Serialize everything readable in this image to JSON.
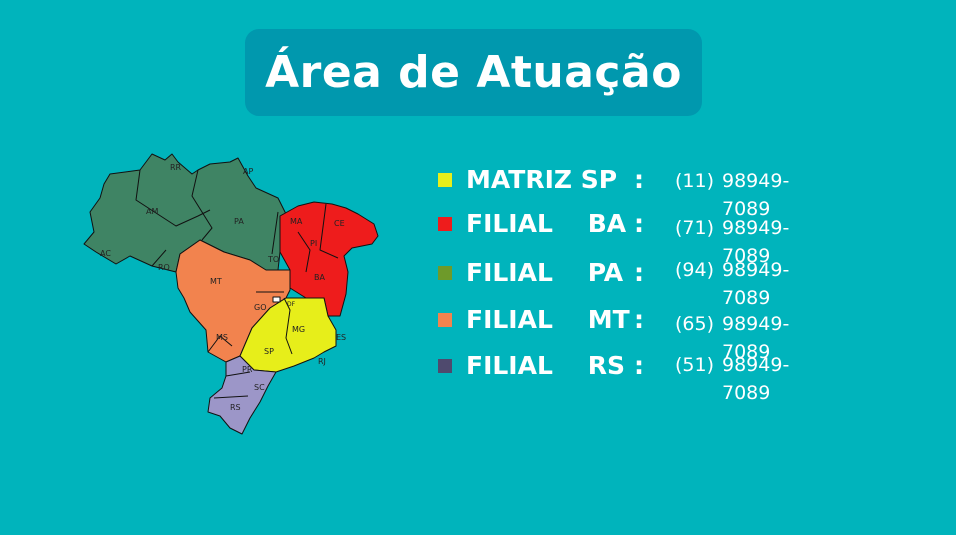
{
  "title": "Área de Atuação",
  "map": {
    "states": [
      "RR",
      "AP",
      "AM",
      "PA",
      "AC",
      "RO",
      "MA",
      "CE",
      "PI",
      "TO",
      "MT",
      "BA",
      "GO",
      "DF",
      "MG",
      "ES",
      "MS",
      "SP",
      "RJ",
      "PR",
      "SC",
      "RS"
    ]
  },
  "branches": [
    {
      "name": "MATRIZ SP",
      "colon": ":",
      "area_code": "(11)",
      "phone": "98949-7089",
      "color": "#e7ee1a"
    },
    {
      "name": "FILIAL    BA",
      "colon": ":",
      "area_code": "(71)",
      "phone": "98949-7089",
      "color": "#ee1c1c"
    },
    {
      "name": "FILIAL    PA",
      "colon": ":",
      "area_code": "(94)",
      "phone": "98949-7089",
      "color": "#6e9a2a"
    },
    {
      "name": "FILIAL    MT",
      "colon": ":",
      "area_code": "(65)",
      "phone": "98949-7089",
      "color": "#f2834e"
    },
    {
      "name": "FILIAL    RS",
      "colon": ":",
      "area_code": "(51)",
      "phone": "98949-7089",
      "color": "#4f4a6e"
    }
  ],
  "colors": {
    "background": "#00b4bc",
    "title_box": "#0098ae",
    "north_green": "#3f8464",
    "northeast_red": "#ee1c1c",
    "central_orange": "#f2834e",
    "southeast_yellow": "#e7ee1a",
    "south_purple": "#9c96c8"
  }
}
